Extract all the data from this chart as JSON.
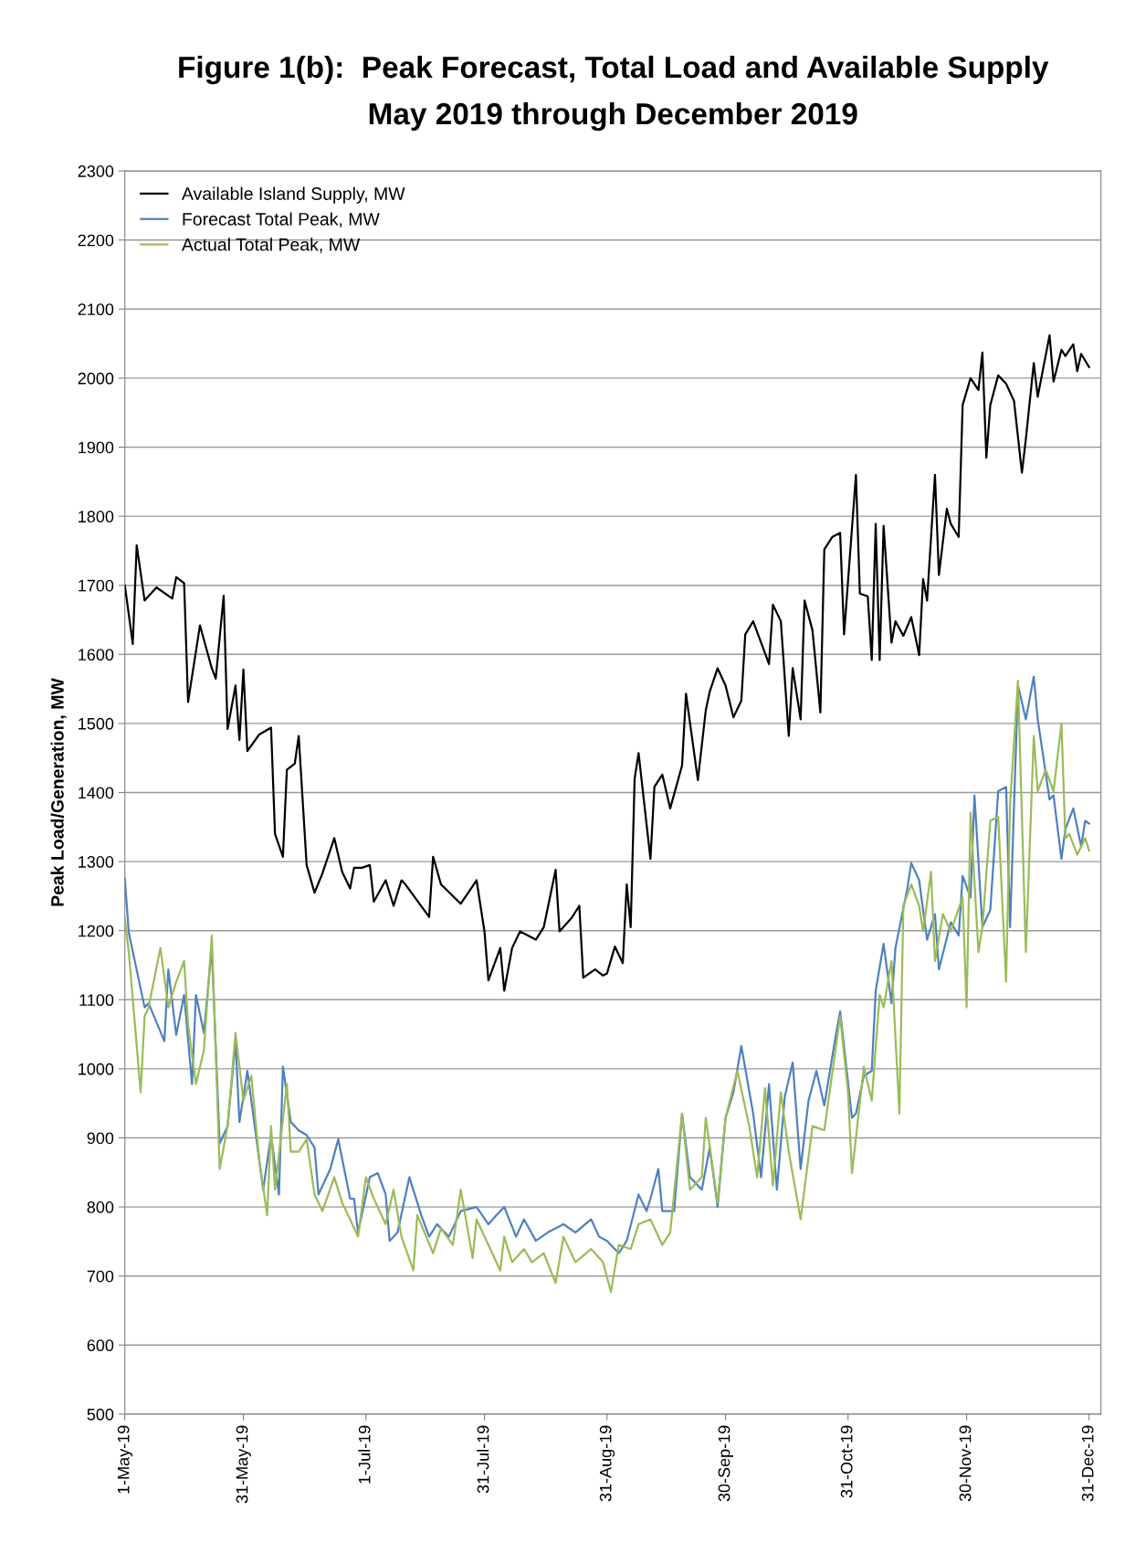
{
  "chart_data": {
    "type": "line",
    "title": "Figure 1(b):  Peak Forecast, Total Load and Available Supply",
    "subtitle": "May 2019 through December 2019",
    "ylabel": "Peak Load/Generation, MW",
    "xlim": [
      "2019-05-01",
      "2020-01-03"
    ],
    "xticks": [
      {
        "value": "2019-05-01",
        "label": "1-May-19"
      },
      {
        "value": "2019-05-31",
        "label": "31-May-19"
      },
      {
        "value": "2019-07-01",
        "label": "1-Jul-19"
      },
      {
        "value": "2019-07-31",
        "label": "31-Jul-19"
      },
      {
        "value": "2019-08-31",
        "label": "31-Aug-19"
      },
      {
        "value": "2019-09-30",
        "label": "30-Sep-19"
      },
      {
        "value": "2019-10-31",
        "label": "31-Oct-19"
      },
      {
        "value": "2019-11-30",
        "label": "30-Nov-19"
      },
      {
        "value": "2019-12-31",
        "label": "31-Dec-19"
      }
    ],
    "ylim": [
      500,
      2300
    ],
    "yticks": [
      500,
      600,
      700,
      800,
      900,
      1000,
      1100,
      1200,
      1300,
      1400,
      1500,
      1600,
      1700,
      1800,
      1900,
      2000,
      2100,
      2200,
      2300
    ],
    "grid": "y",
    "legend": "top left",
    "marker": "none",
    "line_style": "solid",
    "series": [
      {
        "name": "Available Island Supply, MW",
        "color": "#000000",
        "x": [
          "2019-05-01",
          "2019-05-03",
          "2019-05-04",
          "2019-05-06",
          "2019-05-09",
          "2019-05-13",
          "2019-05-14",
          "2019-05-16",
          "2019-05-17",
          "2019-05-20",
          "2019-05-23",
          "2019-05-24",
          "2019-05-26",
          "2019-05-27",
          "2019-05-29",
          "2019-05-30",
          "2019-05-31",
          "2019-06-01",
          "2019-06-04",
          "2019-06-07",
          "2019-06-08",
          "2019-06-10",
          "2019-06-11",
          "2019-06-13",
          "2019-06-14",
          "2019-06-16",
          "2019-06-18",
          "2019-06-20",
          "2019-06-23",
          "2019-06-25",
          "2019-06-27",
          "2019-06-28",
          "2019-06-30",
          "2019-07-02",
          "2019-07-03",
          "2019-07-06",
          "2019-07-08",
          "2019-07-10",
          "2019-07-11",
          "2019-07-17",
          "2019-07-18",
          "2019-07-20",
          "2019-07-25",
          "2019-07-29",
          "2019-07-31",
          "2019-08-01",
          "2019-08-04",
          "2019-08-05",
          "2019-08-07",
          "2019-08-09",
          "2019-08-13",
          "2019-08-15",
          "2019-08-18",
          "2019-08-19",
          "2019-08-22",
          "2019-08-24",
          "2019-08-25",
          "2019-08-28",
          "2019-08-30",
          "2019-08-31",
          "2019-09-02",
          "2019-09-04",
          "2019-09-05",
          "2019-09-06",
          "2019-09-07",
          "2019-09-08",
          "2019-09-11",
          "2019-09-12",
          "2019-09-14",
          "2019-09-16",
          "2019-09-19",
          "2019-09-20",
          "2019-09-23",
          "2019-09-25",
          "2019-09-26",
          "2019-09-28",
          "2019-09-30",
          "2019-10-02",
          "2019-10-04",
          "2019-10-05",
          "2019-10-07",
          "2019-10-09",
          "2019-10-11",
          "2019-10-12",
          "2019-10-14",
          "2019-10-16",
          "2019-10-17",
          "2019-10-19",
          "2019-10-20",
          "2019-10-22",
          "2019-10-24",
          "2019-10-25",
          "2019-10-27",
          "2019-10-29",
          "2019-10-30",
          "2019-11-02",
          "2019-11-03",
          "2019-11-05",
          "2019-11-06",
          "2019-11-07",
          "2019-11-08",
          "2019-11-09",
          "2019-11-11",
          "2019-11-12",
          "2019-11-14",
          "2019-11-16",
          "2019-11-18",
          "2019-11-19",
          "2019-11-20",
          "2019-11-22",
          "2019-11-23",
          "2019-11-25",
          "2019-11-26",
          "2019-11-28",
          "2019-11-29",
          "2019-12-01",
          "2019-12-03",
          "2019-12-04",
          "2019-12-05",
          "2019-12-06",
          "2019-12-08",
          "2019-12-10",
          "2019-12-12",
          "2019-12-14",
          "2019-12-15",
          "2019-12-17",
          "2019-12-18",
          "2019-12-21",
          "2019-12-22",
          "2019-12-24",
          "2019-12-25",
          "2019-12-27",
          "2019-12-28",
          "2019-12-29",
          "2019-12-31"
        ],
        "values": [
          1700,
          1615,
          1758,
          1678,
          1697,
          1681,
          1712,
          1703,
          1531,
          1642,
          1580,
          1565,
          1685,
          1492,
          1555,
          1476,
          1578,
          1460,
          1484,
          1494,
          1340,
          1307,
          1433,
          1442,
          1482,
          1295,
          1255,
          1283,
          1334,
          1285,
          1261,
          1291,
          1291,
          1295,
          1242,
          1273,
          1236,
          1273,
          1267,
          1220,
          1307,
          1267,
          1239,
          1273,
          1199,
          1128,
          1175,
          1113,
          1175,
          1199,
          1187,
          1205,
          1288,
          1199,
          1218,
          1236,
          1132,
          1144,
          1135,
          1138,
          1177,
          1153,
          1267,
          1205,
          1420,
          1457,
          1304,
          1408,
          1426,
          1377,
          1439,
          1543,
          1418,
          1519,
          1546,
          1580,
          1555,
          1509,
          1533,
          1629,
          1648,
          1617,
          1586,
          1672,
          1648,
          1482,
          1580,
          1506,
          1678,
          1635,
          1516,
          1752,
          1770,
          1776,
          1629,
          1860,
          1688,
          1684,
          1592,
          1789,
          1592,
          1786,
          1617,
          1648,
          1627,
          1654,
          1599,
          1709,
          1678,
          1860,
          1715,
          1811,
          1789,
          1770,
          1961,
          2000,
          1983,
          2037,
          1885,
          1961,
          2004,
          1992,
          1967,
          1863,
          1912,
          2022,
          1973,
          2062,
          1995,
          2041,
          2032,
          2049,
          2010,
          2035,
          2016
        ]
      },
      {
        "name": "Forecast Total Peak, MW",
        "color": "#4f81bd",
        "x": [
          "2019-05-01",
          "2019-05-02",
          "2019-05-06",
          "2019-05-07",
          "2019-05-11",
          "2019-05-12",
          "2019-05-14",
          "2019-05-16",
          "2019-05-18",
          "2019-05-19",
          "2019-05-21",
          "2019-05-23",
          "2019-05-25",
          "2019-05-27",
          "2019-05-29",
          "2019-05-30",
          "2019-06-01",
          "2019-06-04",
          "2019-06-05",
          "2019-06-07",
          "2019-06-09",
          "2019-06-10",
          "2019-06-12",
          "2019-06-14",
          "2019-06-16",
          "2019-06-18",
          "2019-06-19",
          "2019-06-22",
          "2019-06-24",
          "2019-06-27",
          "2019-06-28",
          "2019-06-29",
          "2019-07-02",
          "2019-07-04",
          "2019-07-06",
          "2019-07-07",
          "2019-07-09",
          "2019-07-12",
          "2019-07-15",
          "2019-07-17",
          "2019-07-19",
          "2019-07-22",
          "2019-07-25",
          "2019-07-29",
          "2019-08-01",
          "2019-08-03",
          "2019-08-05",
          "2019-08-08",
          "2019-08-10",
          "2019-08-13",
          "2019-08-16",
          "2019-08-20",
          "2019-08-23",
          "2019-08-27",
          "2019-08-29",
          "2019-08-31",
          "2019-09-03",
          "2019-09-05",
          "2019-09-08",
          "2019-09-10",
          "2019-09-11",
          "2019-09-13",
          "2019-09-14",
          "2019-09-17",
          "2019-09-19",
          "2019-09-21",
          "2019-09-24",
          "2019-09-26",
          "2019-09-28",
          "2019-09-30",
          "2019-10-02",
          "2019-10-04",
          "2019-10-07",
          "2019-10-09",
          "2019-10-11",
          "2019-10-13",
          "2019-10-15",
          "2019-10-17",
          "2019-10-19",
          "2019-10-21",
          "2019-10-23",
          "2019-10-25",
          "2019-10-28",
          "2019-10-29",
          "2019-11-01",
          "2019-11-02",
          "2019-11-04",
          "2019-11-06",
          "2019-11-07",
          "2019-11-09",
          "2019-11-11",
          "2019-11-12",
          "2019-11-15",
          "2019-11-16",
          "2019-11-18",
          "2019-11-20",
          "2019-11-22",
          "2019-11-23",
          "2019-11-26",
          "2019-11-28",
          "2019-11-29",
          "2019-12-01",
          "2019-12-02",
          "2019-12-04",
          "2019-12-06",
          "2019-12-08",
          "2019-12-10",
          "2019-12-11",
          "2019-12-13",
          "2019-12-15",
          "2019-12-17",
          "2019-12-18",
          "2019-12-21",
          "2019-12-22",
          "2019-12-24",
          "2019-12-25",
          "2019-12-27",
          "2019-12-29",
          "2019-12-30",
          "2019-12-31"
        ],
        "values": [
          1275,
          1197,
          1089,
          1095,
          1040,
          1144,
          1049,
          1107,
          978,
          1107,
          1052,
          1175,
          892,
          917,
          1040,
          923,
          997,
          868,
          825,
          904,
          818,
          1003,
          923,
          911,
          904,
          886,
          818,
          855,
          898,
          812,
          812,
          763,
          843,
          849,
          818,
          751,
          763,
          843,
          788,
          757,
          775,
          757,
          794,
          800,
          775,
          788,
          800,
          757,
          782,
          751,
          763,
          775,
          763,
          782,
          757,
          751,
          733,
          751,
          818,
          794,
          812,
          855,
          794,
          794,
          935,
          843,
          825,
          886,
          800,
          929,
          966,
          1033,
          935,
          843,
          978,
          825,
          960,
          1009,
          855,
          954,
          997,
          947,
          1052,
          1083,
          929,
          935,
          990,
          997,
          1113,
          1181,
          1095,
          1175,
          1261,
          1298,
          1273,
          1187,
          1224,
          1144,
          1212,
          1193,
          1279,
          1248,
          1396,
          1205,
          1230,
          1402,
          1408,
          1205,
          1555,
          1506,
          1568,
          1506,
          1390,
          1396,
          1304,
          1347,
          1377,
          1322,
          1359,
          1355
        ]
      },
      {
        "name": "Actual Total Peak, MW",
        "color": "#9bbb59",
        "x": [
          "2019-05-01",
          "2019-05-02",
          "2019-05-05",
          "2019-05-06",
          "2019-05-07",
          "2019-05-10",
          "2019-05-12",
          "2019-05-14",
          "2019-05-16",
          "2019-05-17",
          "2019-05-19",
          "2019-05-21",
          "2019-05-23",
          "2019-05-25",
          "2019-05-27",
          "2019-05-29",
          "2019-05-31",
          "2019-06-02",
          "2019-06-04",
          "2019-06-06",
          "2019-06-07",
          "2019-06-08",
          "2019-06-11",
          "2019-06-12",
          "2019-06-14",
          "2019-06-16",
          "2019-06-18",
          "2019-06-20",
          "2019-06-23",
          "2019-06-25",
          "2019-06-27",
          "2019-06-29",
          "2019-07-01",
          "2019-07-03",
          "2019-07-06",
          "2019-07-08",
          "2019-07-10",
          "2019-07-13",
          "2019-07-14",
          "2019-07-18",
          "2019-07-20",
          "2019-07-23",
          "2019-07-25",
          "2019-07-28",
          "2019-07-29",
          "2019-08-01",
          "2019-08-04",
          "2019-08-05",
          "2019-08-07",
          "2019-08-10",
          "2019-08-12",
          "2019-08-15",
          "2019-08-18",
          "2019-08-20",
          "2019-08-23",
          "2019-08-27",
          "2019-08-30",
          "2019-09-01",
          "2019-09-03",
          "2019-09-06",
          "2019-09-08",
          "2019-09-11",
          "2019-09-14",
          "2019-09-16",
          "2019-09-19",
          "2019-09-21",
          "2019-09-24",
          "2019-09-25",
          "2019-09-28",
          "2019-09-30",
          "2019-10-03",
          "2019-10-06",
          "2019-10-08",
          "2019-10-10",
          "2019-10-12",
          "2019-10-14",
          "2019-10-16",
          "2019-10-19",
          "2019-10-22",
          "2019-10-25",
          "2019-10-29",
          "2019-10-31",
          "2019-11-01",
          "2019-11-04",
          "2019-11-06",
          "2019-11-08",
          "2019-11-09",
          "2019-11-11",
          "2019-11-13",
          "2019-11-14",
          "2019-11-16",
          "2019-11-18",
          "2019-11-19",
          "2019-11-21",
          "2019-11-22",
          "2019-11-24",
          "2019-11-26",
          "2019-11-29",
          "2019-11-30",
          "2019-12-01",
          "2019-12-03",
          "2019-12-04",
          "2019-12-06",
          "2019-12-08",
          "2019-12-10",
          "2019-12-11",
          "2019-12-13",
          "2019-12-15",
          "2019-12-17",
          "2019-12-18",
          "2019-12-20",
          "2019-12-22",
          "2019-12-24",
          "2019-12-25",
          "2019-12-26",
          "2019-12-28",
          "2019-12-30",
          "2019-12-31"
        ],
        "values": [
          1218,
          1169,
          966,
          1076,
          1089,
          1175,
          1089,
          1126,
          1156,
          1064,
          978,
          1027,
          1193,
          855,
          917,
          1052,
          954,
          990,
          868,
          788,
          917,
          825,
          978,
          880,
          880,
          898,
          818,
          794,
          843,
          806,
          782,
          757,
          843,
          812,
          775,
          825,
          757,
          708,
          788,
          733,
          769,
          745,
          825,
          726,
          782,
          745,
          708,
          757,
          720,
          739,
          720,
          733,
          690,
          757,
          720,
          739,
          720,
          677,
          745,
          739,
          775,
          782,
          745,
          763,
          935,
          825,
          843,
          929,
          806,
          929,
          997,
          917,
          843,
          972,
          831,
          966,
          880,
          782,
          917,
          911,
          1076,
          966,
          849,
          1003,
          954,
          1107,
          1089,
          1156,
          935,
          1236,
          1267,
          1236,
          1199,
          1285,
          1156,
          1224,
          1199,
          1248,
          1089,
          1371,
          1169,
          1205,
          1359,
          1365,
          1126,
          1383,
          1562,
          1169,
          1482,
          1402,
          1433,
          1402,
          1500,
          1334,
          1340,
          1310,
          1334,
          1316
        ]
      }
    ]
  }
}
